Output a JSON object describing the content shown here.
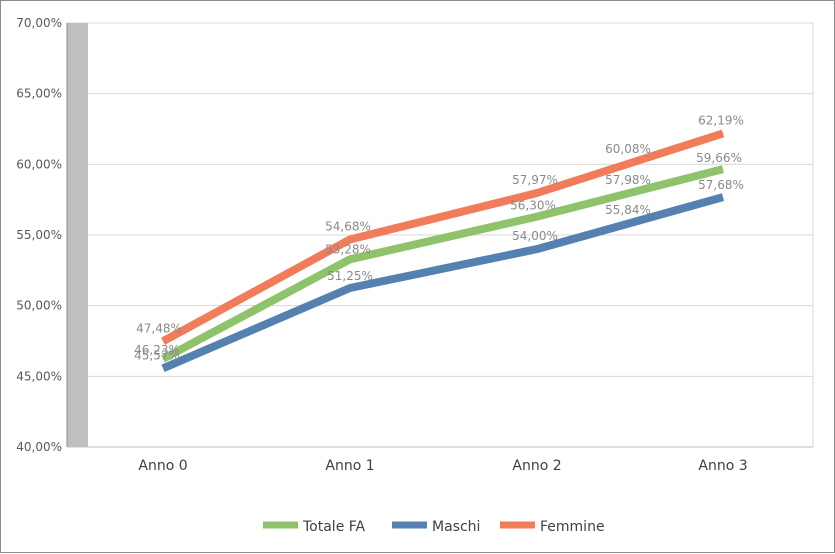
{
  "chart_data": {
    "type": "line",
    "categories": [
      "Anno 0",
      "Anno 1",
      "Anno 2",
      "Anno 3"
    ],
    "series": [
      {
        "name": "Totale FA",
        "values": [
          46.23,
          53.28,
          56.3,
          59.66
        ],
        "labels": [
          "46,23%",
          "53,28%",
          "56,30%",
          "59,66%"
        ],
        "color": "#8fc36b"
      },
      {
        "name": "Maschi",
        "values": [
          45.57,
          51.25,
          54.0,
          57.68
        ],
        "labels": [
          "45,57%",
          "51,25%",
          "54,00%",
          "57,68%"
        ],
        "color": "#5481b0"
      },
      {
        "name": "Femmine",
        "values": [
          47.48,
          54.68,
          57.97,
          62.19
        ],
        "labels": [
          "47,48%",
          "54,68%",
          "57,97%",
          "62,19%"
        ],
        "color": "#f07c5a"
      }
    ],
    "extra_labels": [
      {
        "text": "60,08%",
        "series": "Femmine"
      },
      {
        "text": "57,98%",
        "series": "Totale FA"
      },
      {
        "text": "55,84%",
        "series": "Maschi"
      }
    ],
    "ylim": [
      40,
      70
    ],
    "yticks": [
      40,
      45,
      50,
      55,
      60,
      65,
      70
    ],
    "ytick_labels": [
      "40,00%",
      "45,00%",
      "50,00%",
      "55,00%",
      "60,00%",
      "65,00%",
      "70,00%"
    ],
    "title": "",
    "xlabel": "",
    "ylabel": "",
    "grid": true,
    "legend_position": "bottom",
    "colors": {
      "axis_band": "#bfbfbf",
      "grid": "#d9d9d9",
      "axis": "#8c8c8c"
    }
  }
}
